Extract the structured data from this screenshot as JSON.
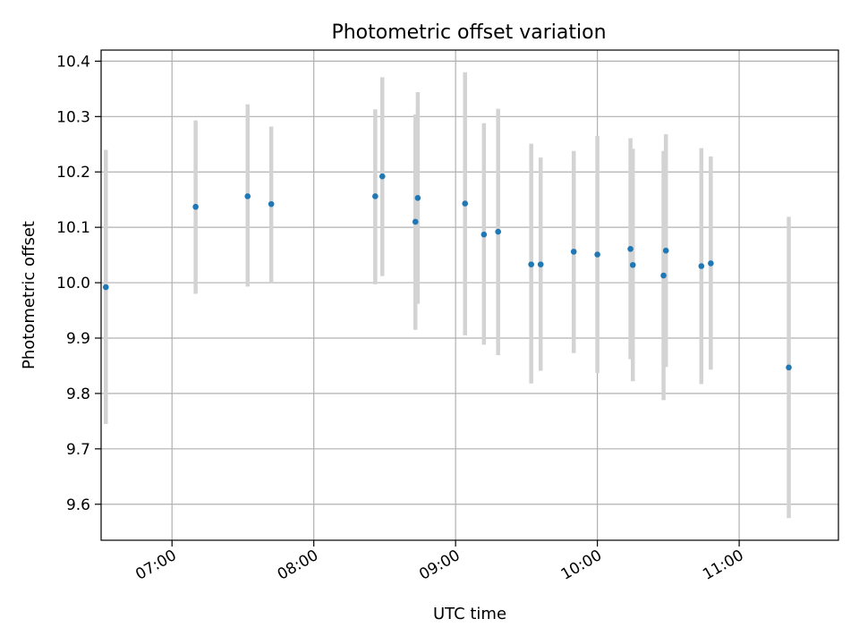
{
  "chart_data": {
    "type": "scatter",
    "title": "Photometric offset variation",
    "xlabel": "UTC time",
    "ylabel": "Photometric offset",
    "xlim": [
      "06:30",
      "11:42"
    ],
    "ylim": [
      9.535,
      10.42
    ],
    "x_ticks": [
      "07:00",
      "08:00",
      "09:00",
      "10:00",
      "11:00"
    ],
    "y_ticks": [
      "9.6",
      "9.7",
      "9.8",
      "9.9",
      "10.0",
      "10.1",
      "10.2",
      "10.3",
      "10.4"
    ],
    "grid": true,
    "series": [
      {
        "points": [
          {
            "x": "06:32",
            "y": 9.992,
            "ylo": 9.745,
            "yhi": 10.24
          },
          {
            "x": "07:10",
            "y": 10.137,
            "ylo": 9.98,
            "yhi": 10.293
          },
          {
            "x": "07:32",
            "y": 10.156,
            "ylo": 9.993,
            "yhi": 10.322
          },
          {
            "x": "07:42",
            "y": 10.142,
            "ylo": 10.0,
            "yhi": 10.282
          },
          {
            "x": "08:26",
            "y": 10.156,
            "ylo": 9.997,
            "yhi": 10.313
          },
          {
            "x": "08:29",
            "y": 10.192,
            "ylo": 10.012,
            "yhi": 10.371
          },
          {
            "x": "08:43",
            "y": 10.11,
            "ylo": 9.915,
            "yhi": 10.304
          },
          {
            "x": "08:44",
            "y": 10.153,
            "ylo": 9.962,
            "yhi": 10.344
          },
          {
            "x": "09:04",
            "y": 10.143,
            "ylo": 9.905,
            "yhi": 10.38
          },
          {
            "x": "09:12",
            "y": 10.087,
            "ylo": 9.888,
            "yhi": 10.288
          },
          {
            "x": "09:18",
            "y": 10.092,
            "ylo": 9.869,
            "yhi": 10.314
          },
          {
            "x": "09:32",
            "y": 10.033,
            "ylo": 9.818,
            "yhi": 10.251
          },
          {
            "x": "09:36",
            "y": 10.033,
            "ylo": 9.841,
            "yhi": 10.226
          },
          {
            "x": "09:50",
            "y": 10.056,
            "ylo": 9.873,
            "yhi": 10.238
          },
          {
            "x": "10:00",
            "y": 10.051,
            "ylo": 9.837,
            "yhi": 10.265
          },
          {
            "x": "10:14",
            "y": 10.061,
            "ylo": 9.862,
            "yhi": 10.261
          },
          {
            "x": "10:15",
            "y": 10.032,
            "ylo": 9.822,
            "yhi": 10.242
          },
          {
            "x": "10:28",
            "y": 10.013,
            "ylo": 9.788,
            "yhi": 10.238
          },
          {
            "x": "10:29",
            "y": 10.058,
            "ylo": 9.848,
            "yhi": 10.268
          },
          {
            "x": "10:44",
            "y": 10.03,
            "ylo": 9.817,
            "yhi": 10.243
          },
          {
            "x": "10:48",
            "y": 10.035,
            "ylo": 9.843,
            "yhi": 10.228
          },
          {
            "x": "11:21",
            "y": 9.847,
            "ylo": 9.575,
            "yhi": 10.119
          }
        ],
        "color": "#1f77b4",
        "error_color": "#d3d3d3"
      }
    ]
  }
}
